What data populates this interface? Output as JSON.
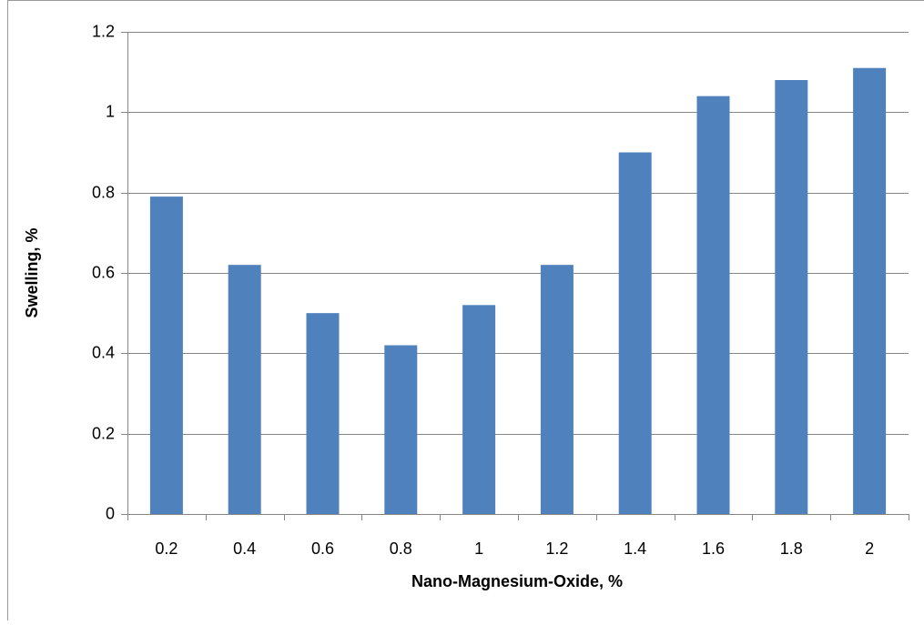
{
  "chart_data": {
    "type": "bar",
    "x_label": "Nano-Magnesium-Oxide, %",
    "y_label": "Swelling, %",
    "categories": [
      "0.2",
      "0.4",
      "0.6",
      "0.8",
      "1",
      "1.2",
      "1.4",
      "1.6",
      "1.8",
      "2"
    ],
    "values": [
      0.79,
      0.62,
      0.5,
      0.42,
      0.52,
      0.62,
      0.9,
      1.04,
      1.08,
      1.11
    ],
    "color": "#4f81bd",
    "ylim": [
      0,
      1.2
    ],
    "yticks": [
      0,
      0.2,
      0.4,
      0.6,
      0.8,
      1,
      1.2
    ],
    "grid": true
  }
}
